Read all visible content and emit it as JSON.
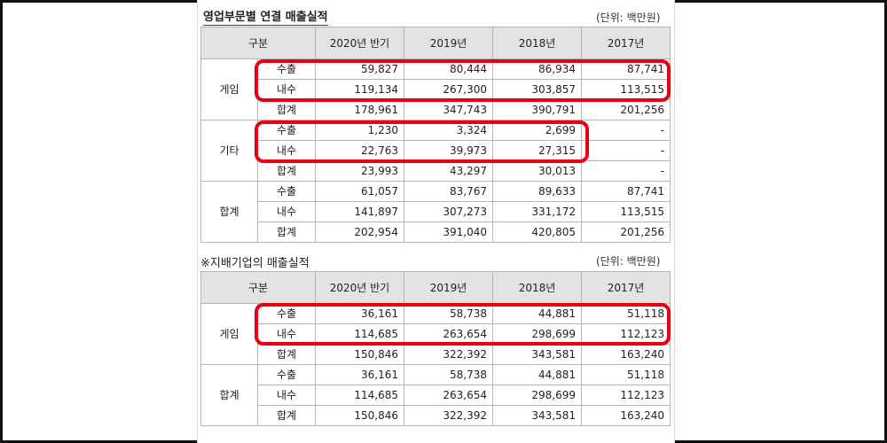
{
  "section1": {
    "title": "영업부문별 연결 매출실적",
    "unit": "(단위: 백만원)",
    "headers": [
      "구분",
      "2020년 반기",
      "2019년",
      "2018년",
      "2017년"
    ],
    "groups": [
      {
        "name": "게임",
        "rows": [
          {
            "label": "수출",
            "values": [
              "59,827",
              "80,444",
              "86,934",
              "87,741"
            ]
          },
          {
            "label": "내수",
            "values": [
              "119,134",
              "267,300",
              "303,857",
              "113,515"
            ]
          },
          {
            "label": "합계",
            "values": [
              "178,961",
              "347,743",
              "390,791",
              "201,256"
            ]
          }
        ]
      },
      {
        "name": "기타",
        "rows": [
          {
            "label": "수출",
            "values": [
              "1,230",
              "3,324",
              "2,699",
              "-"
            ]
          },
          {
            "label": "내수",
            "values": [
              "22,763",
              "39,973",
              "27,315",
              "-"
            ]
          },
          {
            "label": "합계",
            "values": [
              "23,993",
              "43,297",
              "30,013",
              "-"
            ]
          }
        ]
      },
      {
        "name": "합계",
        "rows": [
          {
            "label": "수출",
            "values": [
              "61,057",
              "83,767",
              "89,633",
              "87,741"
            ]
          },
          {
            "label": "내수",
            "values": [
              "141,897",
              "307,273",
              "331,172",
              "113,515"
            ]
          },
          {
            "label": "합계",
            "values": [
              "202,954",
              "391,040",
              "420,805",
              "201,256"
            ]
          }
        ]
      }
    ]
  },
  "section2": {
    "title": "※지배기업의 매출실적",
    "unit": "(단위: 백만원)",
    "headers": [
      "구분",
      "2020년 반기",
      "2019년",
      "2018년",
      "2017년"
    ],
    "groups": [
      {
        "name": "게임",
        "rows": [
          {
            "label": "수출",
            "values": [
              "36,161",
              "58,738",
              "44,881",
              "51,118"
            ]
          },
          {
            "label": "내수",
            "values": [
              "114,685",
              "263,654",
              "298,699",
              "112,123"
            ]
          },
          {
            "label": "합계",
            "values": [
              "150,846",
              "322,392",
              "343,581",
              "163,240"
            ]
          }
        ]
      },
      {
        "name": "합계",
        "rows": [
          {
            "label": "수출",
            "values": [
              "36,161",
              "58,738",
              "44,881",
              "51,118"
            ]
          },
          {
            "label": "내수",
            "values": [
              "114,685",
              "263,654",
              "298,699",
              "112,123"
            ]
          },
          {
            "label": "합계",
            "values": [
              "150,846",
              "322,392",
              "343,581",
              "163,240"
            ]
          }
        ]
      }
    ]
  },
  "highlight_color": "#e60012"
}
